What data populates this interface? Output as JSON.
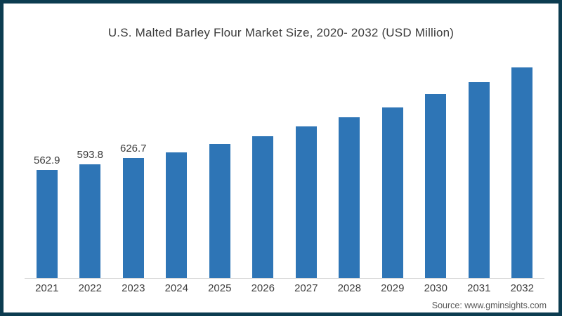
{
  "chart_data": {
    "type": "bar",
    "title": "U.S. Malted Barley Flour Market Size, 2020- 2032 (USD Million)",
    "categories": [
      "2021",
      "2022",
      "2023",
      "2024",
      "2025",
      "2026",
      "2027",
      "2028",
      "2029",
      "2030",
      "2031",
      "2032"
    ],
    "values": [
      562.9,
      593.8,
      626.7,
      655,
      699,
      739,
      790,
      838,
      890,
      958,
      1022,
      1098
    ],
    "value_labels": [
      "562.9",
      "593.8",
      "626.7",
      "",
      "",
      "",
      "",
      "",
      "",
      "",
      "",
      ""
    ],
    "xlabel": "",
    "ylabel": "USD Million",
    "ylim": [
      0,
      1230
    ],
    "grid": false,
    "legend": "none",
    "bar_color": "#2e75b6",
    "axis_line_color": "#d9d9d9",
    "label_color": "#3b3b3b"
  },
  "footer": {
    "source": "Source: www.gminsights.com"
  },
  "frame": {
    "border_color": "#0c3c50",
    "background": "#ffffff"
  }
}
